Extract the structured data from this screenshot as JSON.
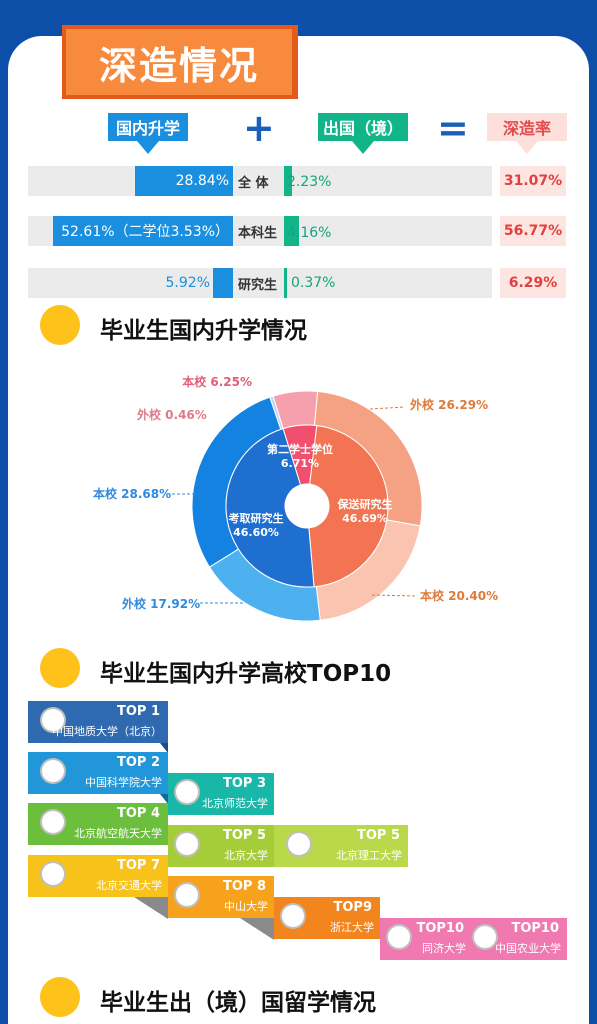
{
  "section_title": "深造情况",
  "headers": {
    "domestic": "国内升学",
    "plus": "+",
    "abroad": "出国（境）",
    "equals": "=",
    "rate": "深造率"
  },
  "rows": [
    {
      "label": "全  体",
      "domestic": "28.84%",
      "abroad": "2.23%",
      "rate": "31.07%"
    },
    {
      "label": "本科生",
      "domestic": "52.61%（二学位3.53%）",
      "abroad": "4.16%",
      "rate": "56.77%"
    },
    {
      "label": "研究生",
      "domestic": "5.92%",
      "abroad": "0.37%",
      "rate": "6.29%"
    }
  ],
  "sections": {
    "domestic_title": "毕业生国内升学情况",
    "top10_title": "毕业生国内升学高校TOP10",
    "abroad_title": "毕业生出（境）国留学情况"
  },
  "chart_data": {
    "type": "pie",
    "inner": [
      {
        "name": "第二学士学位",
        "value": 6.71,
        "color": "#f0506e"
      },
      {
        "name": "保送研究生",
        "value": 46.69,
        "color": "#f27452"
      },
      {
        "name": "考取研究生",
        "value": 46.6,
        "color": "#1f6fd0"
      }
    ],
    "outer": [
      {
        "label": "本校 6.25%",
        "value": 6.25,
        "color": "#f7a0ad"
      },
      {
        "label": "外校 26.29%",
        "value": 26.29,
        "color": "#f5a184"
      },
      {
        "label": "本校 20.40%",
        "value": 20.4,
        "color": "#fbc4b0"
      },
      {
        "label": "外校 17.92%",
        "value": 17.92,
        "color": "#4db1f0"
      },
      {
        "label": "本校 28.68%",
        "value": 28.68,
        "color": "#1482e0"
      },
      {
        "label": "外校 0.46%",
        "value": 0.46,
        "color": "#b8d8f4"
      }
    ]
  },
  "top10": [
    {
      "rank": "TOP 1",
      "name": "中国地质大学（北京）",
      "color": "#2f6ab0"
    },
    {
      "rank": "TOP 2",
      "name": "中国科学院大学",
      "color": "#2196d8"
    },
    {
      "rank": "TOP 3",
      "name": "北京师范大学",
      "color": "#19b7a8"
    },
    {
      "rank": "TOP 4",
      "name": "北京航空航天大学",
      "color": "#6cbf3c"
    },
    {
      "rank": "TOP 5",
      "name": "北京大学",
      "color": "#a5cd3a"
    },
    {
      "rank": "TOP 5",
      "name": "北京理工大学",
      "color": "#b9d84a"
    },
    {
      "rank": "TOP 7",
      "name": "北京交通大学",
      "color": "#f7c21a"
    },
    {
      "rank": "TOP 8",
      "name": "中山大学",
      "color": "#f7a21c"
    },
    {
      "rank": "TOP9",
      "name": "浙江大学",
      "color": "#f2851d"
    },
    {
      "rank": "TOP10",
      "name": "同济大学",
      "color": "#ef79b0"
    },
    {
      "rank": "TOP10",
      "name": "中国农业大学",
      "color": "#ef79b0"
    }
  ]
}
